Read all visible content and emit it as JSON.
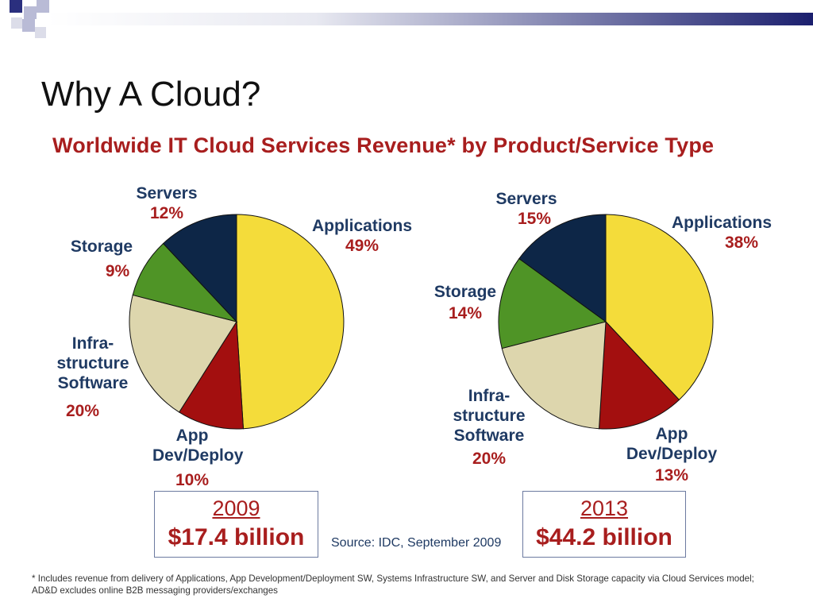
{
  "slide_title": "Why A Cloud?",
  "source": "Source: IDC, September 2009",
  "footnote": "* Includes revenue from delivery of Applications, App Development/Deployment SW, Systems Infrastructure SW, and Server and Disk Storage capacity via Cloud Services model; AD&D excludes online B2B messaging providers/exchanges",
  "colors": {
    "applications": "#f4dc3a",
    "app_dev": "#a30f0f",
    "infrastructure": "#ddd6ad",
    "storage": "#4f9426",
    "servers": "#0d2647",
    "title_red": "#a81e1e",
    "label_blue": "#1f3a63"
  },
  "chart_data": {
    "type": "pie",
    "title": "Worldwide IT Cloud Services Revenue* by Product/Service Type",
    "pies": [
      {
        "year": "2009",
        "total": "$17.4 billion",
        "slices": [
          {
            "name": "Applications",
            "value": 49,
            "label": "49%"
          },
          {
            "name": "App Dev/Deploy",
            "value": 10,
            "label": "10%"
          },
          {
            "name": "Infra- structure Software",
            "value": 20,
            "label": "20%"
          },
          {
            "name": "Storage",
            "value": 9,
            "label": "9%"
          },
          {
            "name": "Servers",
            "value": 12,
            "label": "12%"
          }
        ]
      },
      {
        "year": "2013",
        "total": "$44.2 billion",
        "slices": [
          {
            "name": "Applications",
            "value": 38,
            "label": "38%"
          },
          {
            "name": "App Dev/Deploy",
            "value": 13,
            "label": "13%"
          },
          {
            "name": "Infra- structure Software",
            "value": 20,
            "label": "20%"
          },
          {
            "name": "Storage",
            "value": 14,
            "label": "14%"
          },
          {
            "name": "Servers",
            "value": 15,
            "label": "15%"
          }
        ]
      }
    ]
  }
}
